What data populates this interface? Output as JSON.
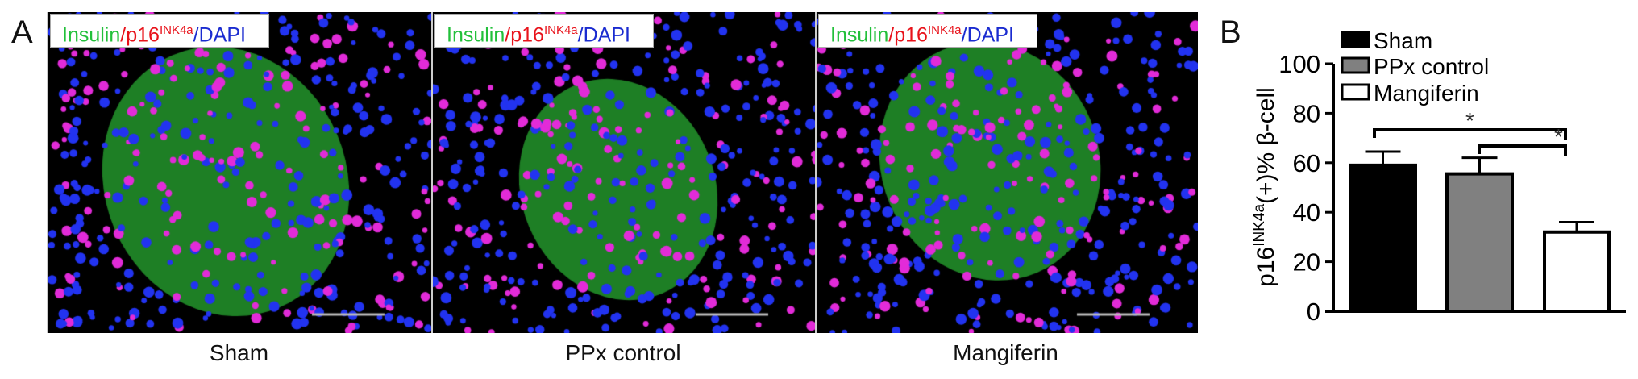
{
  "panel_a": {
    "label": "A",
    "stain_label": {
      "insulin": "Insulin",
      "sep1": "/",
      "p16": "p16",
      "p16_sup": "INK4a",
      "sep2": "/",
      "dapi": "DAPI"
    },
    "stain_colors": {
      "insulin": "#22c03a",
      "p16": "#e8121a",
      "dapi": "#1a2bd0"
    },
    "images": [
      {
        "caption": "Sham"
      },
      {
        "caption": "PPx control"
      },
      {
        "caption": "Mangiferin"
      }
    ]
  },
  "chart_data": {
    "panel_label": "B",
    "type": "bar",
    "categories": [
      "Sham",
      "PPx control",
      "Mangiferin"
    ],
    "values": [
      59,
      55.5,
      32
    ],
    "error_upper": [
      64.5,
      62,
      36
    ],
    "colors": [
      "#000000",
      "#808080",
      "#ffffff"
    ],
    "ylabel": {
      "main": "p16",
      "sup": "INK4a",
      "rest": "(+)% β-cell"
    },
    "ylim": [
      0,
      100
    ],
    "yticks": [
      "0",
      "20",
      "40",
      "60",
      "80",
      "100"
    ],
    "legend": [
      "Sham",
      "PPx control",
      "Mangiferin"
    ],
    "legend_placement": "top-left",
    "significance": [
      {
        "from": "Sham",
        "to": "Mangiferin",
        "mark": "*"
      },
      {
        "from": "PPx control",
        "to": "Mangiferin",
        "mark": "*"
      }
    ],
    "grid": false
  }
}
